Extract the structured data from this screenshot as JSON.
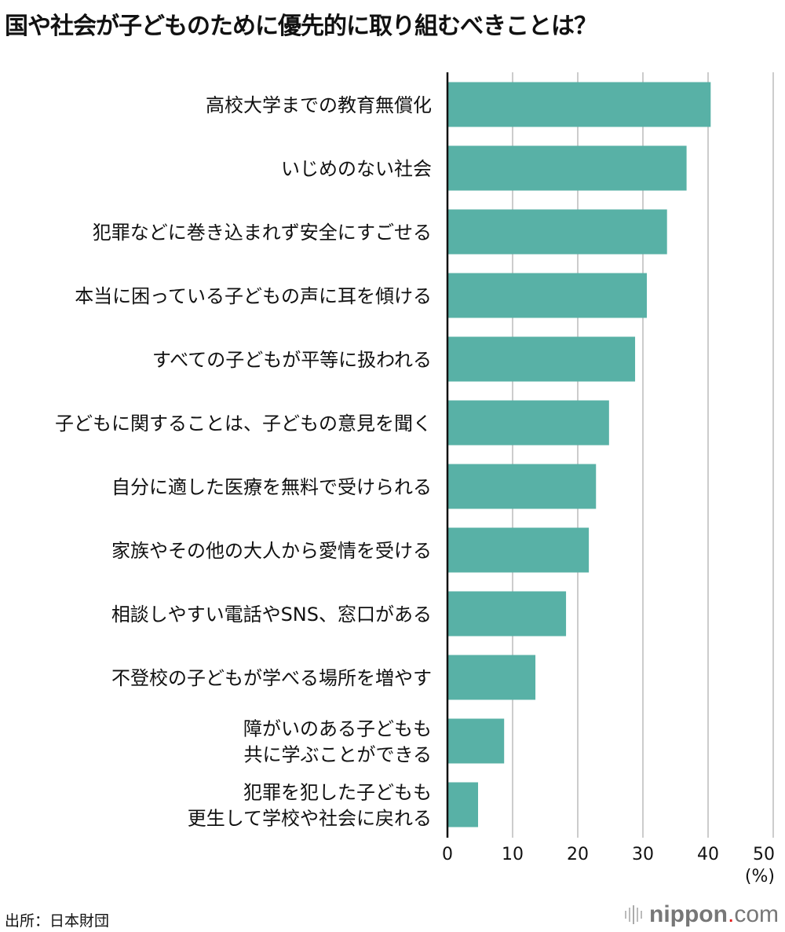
{
  "title": "国や社会が子どものために優先的に取り組むべきことは？",
  "source": "出所：日本財団",
  "logo": {
    "name": "nippon",
    "dot": ".",
    "tld": "com"
  },
  "chart_data": {
    "type": "bar",
    "orientation": "horizontal",
    "title": "国や社会が子どものために優先的に取り組むべきことは？",
    "categories": [
      [
        "高校大学までの教育無償化"
      ],
      [
        "いじめのない社会"
      ],
      [
        "犯罪などに巻き込まれず安全にすごせる"
      ],
      [
        "本当に困っている子どもの声に耳を傾ける"
      ],
      [
        "すべての子どもが平等に扱われる"
      ],
      [
        "子どもに関することは、子どもの意見を聞く"
      ],
      [
        "自分に適した医療を無料で受けられる"
      ],
      [
        "家族やその他の大人から愛情を受ける"
      ],
      [
        "相談しやすい電話やSNS、窓口がある"
      ],
      [
        "不登校の子どもが学べる場所を増やす"
      ],
      [
        "障がいのある子どもも",
        "共に学ぶことができる"
      ],
      [
        "犯罪を犯した子どもも",
        "更生して学校や社会に戻れる"
      ]
    ],
    "values": [
      40.4,
      36.7,
      33.7,
      30.6,
      28.8,
      24.8,
      22.8,
      21.7,
      18.2,
      13.5,
      8.7,
      4.7
    ],
    "xlim": [
      0,
      50
    ],
    "xticks": [
      0,
      10,
      20,
      30,
      40,
      50
    ],
    "xlabel": "(%)",
    "grid": true,
    "bar_color": "#58b1a6",
    "grid_color": "#cccccc"
  }
}
